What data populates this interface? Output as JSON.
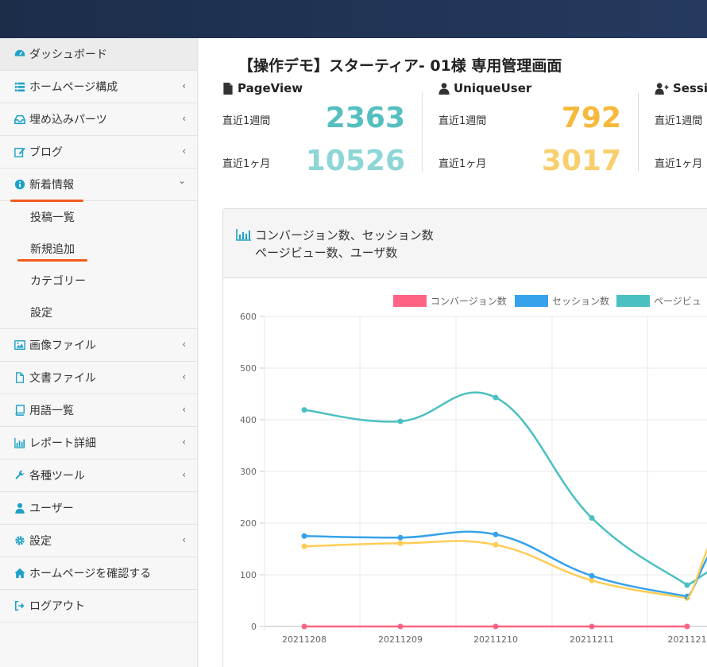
{
  "sidebar": {
    "items": [
      {
        "label": "ダッシュボード",
        "icon": "dashboard-icon",
        "chevron": false,
        "active": true
      },
      {
        "label": "ホームページ構成",
        "icon": "list-icon",
        "chevron": true
      },
      {
        "label": "埋め込みパーツ",
        "icon": "inbox-icon",
        "chevron": true
      },
      {
        "label": "ブログ",
        "icon": "edit-icon",
        "chevron": true
      },
      {
        "label": "新着情報",
        "icon": "info-icon",
        "chevron": true,
        "expanded": true
      },
      {
        "label": "画像ファイル",
        "icon": "image-icon",
        "chevron": true
      },
      {
        "label": "文書ファイル",
        "icon": "file-icon",
        "chevron": true
      },
      {
        "label": "用語一覧",
        "icon": "book-icon",
        "chevron": true
      },
      {
        "label": "レポート詳細",
        "icon": "bar-chart-icon",
        "chevron": true
      },
      {
        "label": "各種ツール",
        "icon": "wrench-icon",
        "chevron": true
      },
      {
        "label": "ユーザー",
        "icon": "user-icon",
        "chevron": false
      },
      {
        "label": "設定",
        "icon": "gear-icon",
        "chevron": true
      },
      {
        "label": "ホームページを確認する",
        "icon": "home-icon",
        "chevron": false
      },
      {
        "label": "ログアウト",
        "icon": "logout-icon",
        "chevron": false
      }
    ],
    "submenu": [
      "投稿一覧",
      "新規追加",
      "カテゴリー",
      "設定"
    ],
    "chevron_glyph": "‹",
    "chevron_open_glyph": "⌄"
  },
  "main": {
    "title": "【操作デモ】スターティア- 01様 専用管理画面",
    "stats": [
      {
        "title": "PageView",
        "week_label": "直近1週間",
        "week_value": "2363",
        "month_label": "直近1ヶ月",
        "month_value": "10526",
        "color_week": "#56bfbf",
        "color_month": "#8ed6d6"
      },
      {
        "title": "UniqueUser",
        "week_label": "直近1週間",
        "week_value": "792",
        "month_label": "直近1ヶ月",
        "month_value": "3017",
        "color_week": "#f6b93b",
        "color_month": "#f9cf6e"
      },
      {
        "title": "Sessi",
        "week_label": "直近1週間",
        "month_label": "直近1ヶ月"
      }
    ],
    "panel_title_line1": "コンバージョン数、セッション数",
    "panel_title_line2": "ページビュー数、ユーザ数"
  },
  "chart_data": {
    "type": "line",
    "categories": [
      "20211208",
      "20211209",
      "20211210",
      "20211211",
      "2021121"
    ],
    "ylim": [
      0,
      600
    ],
    "yticks": [
      "0",
      "100",
      "200",
      "300",
      "400",
      "500",
      "600"
    ],
    "legend_placement": "top",
    "series": [
      {
        "name": "コンバージョン数",
        "color": "#ff6384",
        "values": [
          0,
          0,
          0,
          0,
          0
        ]
      },
      {
        "name": "セッション数",
        "color": "#36a2eb",
        "values": [
          175,
          172,
          178,
          98,
          58
        ]
      },
      {
        "name": "ページビュ",
        "color": "#4bc0c0",
        "values": [
          419,
          397,
          443,
          210,
          80
        ]
      },
      {
        "name": "",
        "color": "#ffcd56",
        "values": [
          155,
          161,
          158,
          89,
          55
        ]
      }
    ]
  }
}
